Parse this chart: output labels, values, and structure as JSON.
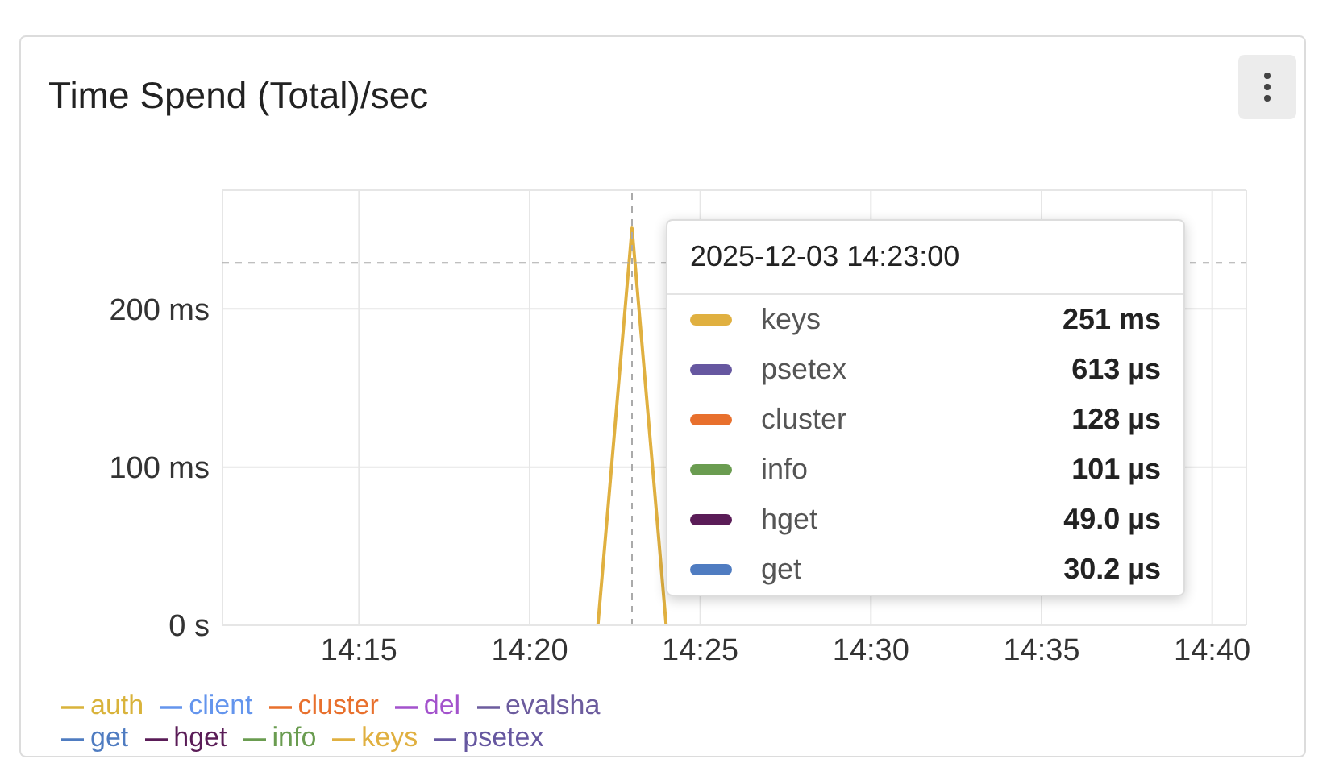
{
  "chart_data": {
    "type": "line",
    "title": "Time Spend (Total)/sec",
    "annotations": [
      "2025-12-03 14:23:00",
      "251 ms",
      "613 µs",
      "128 µs",
      "101 µs",
      "49.0 µs",
      "30.2 µs"
    ],
    "x": [
      "2025-12-03T14:11",
      "2025-12-03T14:12",
      "2025-12-03T14:13",
      "2025-12-03T14:14",
      "2025-12-03T14:15",
      "2025-12-03T14:16",
      "2025-12-03T14:17",
      "2025-12-03T14:18",
      "2025-12-03T14:19",
      "2025-12-03T14:20",
      "2025-12-03T14:21",
      "2025-12-03T14:22",
      "2025-12-03T14:23",
      "2025-12-03T14:24",
      "2025-12-03T14:25",
      "2025-12-03T14:26",
      "2025-12-03T14:27",
      "2025-12-03T14:28",
      "2025-12-03T14:29",
      "2025-12-03T14:30",
      "2025-12-03T14:31",
      "2025-12-03T14:32",
      "2025-12-03T14:33",
      "2025-12-03T14:34",
      "2025-12-03T14:35",
      "2025-12-03T14:36",
      "2025-12-03T14:37",
      "2025-12-03T14:38",
      "2025-12-03T14:39",
      "2025-12-03T14:40",
      "2025-12-03T14:41"
    ],
    "xlim": [
      "2025-12-03T14:11",
      "2025-12-03T14:41"
    ],
    "xticks": [
      {
        "value": "2025-12-03T14:15",
        "label": "14:15"
      },
      {
        "value": "2025-12-03T14:20",
        "label": "14:20"
      },
      {
        "value": "2025-12-03T14:25",
        "label": "14:25"
      },
      {
        "value": "2025-12-03T14:30",
        "label": "14:30"
      },
      {
        "value": "2025-12-03T14:35",
        "label": "14:35"
      },
      {
        "value": "2025-12-03T14:40",
        "label": "14:40"
      }
    ],
    "ylim": [
      0,
      275
    ],
    "yticks": [
      {
        "value": 0,
        "label": "0 s"
      },
      {
        "value": 100,
        "label": "100 ms"
      },
      {
        "value": 200,
        "label": "200 ms"
      }
    ],
    "grid": true,
    "legend": "bottom",
    "marker": "none",
    "line_style": "solid",
    "ref_lines": [
      {
        "axis": "x",
        "value": "2025-12-03T14:23",
        "color": "#aaaaaa",
        "line_style": "dashed"
      },
      {
        "axis": "y",
        "value": 229,
        "color": "#aaaaaa",
        "line_style": "dashed"
      }
    ],
    "series": [
      {
        "name": "keys",
        "color": "#e0b040",
        "values": [
          null,
          null,
          null,
          null,
          null,
          null,
          null,
          null,
          null,
          null,
          null,
          0,
          251,
          0,
          null,
          null,
          null,
          null,
          null,
          null,
          null,
          null,
          null,
          null,
          null,
          null,
          null,
          null,
          null,
          null,
          null
        ]
      },
      {
        "name": "psetex",
        "color": "#6657a0",
        "values": [
          null,
          null,
          null,
          null,
          null,
          null,
          null,
          null,
          null,
          null,
          null,
          null,
          null,
          null,
          null,
          null,
          null,
          null,
          null,
          null,
          null,
          null,
          null,
          null,
          null,
          null,
          null,
          null,
          null,
          null,
          null
        ]
      },
      {
        "name": "cluster",
        "color": "#e8702d",
        "values": [
          null,
          null,
          null,
          null,
          null,
          null,
          null,
          null,
          null,
          null,
          null,
          null,
          null,
          null,
          null,
          null,
          null,
          null,
          null,
          null,
          null,
          null,
          null,
          null,
          null,
          null,
          null,
          null,
          null,
          null,
          null
        ]
      },
      {
        "name": "info",
        "color": "#6a9c50",
        "values": [
          null,
          null,
          null,
          null,
          null,
          null,
          null,
          null,
          null,
          null,
          null,
          null,
          null,
          null,
          null,
          null,
          null,
          null,
          null,
          null,
          null,
          null,
          null,
          null,
          null,
          null,
          null,
          null,
          null,
          null,
          null
        ]
      },
      {
        "name": "hget",
        "color": "#5a1c57",
        "values": [
          null,
          null,
          null,
          null,
          null,
          null,
          null,
          null,
          null,
          null,
          null,
          null,
          null,
          null,
          null,
          null,
          null,
          null,
          null,
          null,
          null,
          null,
          null,
          null,
          null,
          null,
          null,
          null,
          null,
          null,
          null
        ]
      },
      {
        "name": "get",
        "color": "#4f7cc1",
        "values": [
          null,
          null,
          null,
          null,
          null,
          null,
          null,
          null,
          null,
          null,
          null,
          null,
          null,
          null,
          null,
          null,
          null,
          null,
          null,
          null,
          null,
          null,
          null,
          null,
          null,
          null,
          null,
          null,
          null,
          null,
          null
        ]
      },
      {
        "name": "auth",
        "color": "#d9b33b",
        "values": [
          null,
          null,
          null,
          null,
          null,
          null,
          null,
          null,
          null,
          null,
          null,
          null,
          null,
          null,
          null,
          null,
          null,
          null,
          null,
          null,
          null,
          null,
          null,
          null,
          null,
          null,
          null,
          null,
          null,
          null,
          null
        ]
      },
      {
        "name": "client",
        "color": "#6495ed",
        "values": [
          null,
          null,
          null,
          null,
          null,
          null,
          null,
          null,
          null,
          null,
          null,
          null,
          null,
          null,
          null,
          null,
          null,
          null,
          null,
          null,
          null,
          null,
          null,
          null,
          null,
          null,
          null,
          null,
          null,
          null,
          null
        ]
      },
      {
        "name": "del",
        "color": "#a352cc",
        "values": [
          null,
          null,
          null,
          null,
          null,
          null,
          null,
          null,
          null,
          null,
          null,
          null,
          null,
          null,
          null,
          null,
          null,
          null,
          null,
          null,
          null,
          null,
          null,
          null,
          null,
          null,
          null,
          null,
          null,
          null,
          null
        ]
      },
      {
        "name": "evalsha",
        "color": "#6c5c9e",
        "values": [
          null,
          null,
          null,
          null,
          null,
          null,
          null,
          null,
          null,
          null,
          null,
          null,
          null,
          null,
          null,
          null,
          null,
          null,
          null,
          null,
          null,
          null,
          null,
          null,
          null,
          null,
          null,
          null,
          null,
          null,
          null
        ]
      },
      {
        "color": "#37565e",
        "values": [
          0,
          0,
          0,
          0,
          0,
          0,
          0,
          0,
          0,
          0,
          0,
          0,
          0,
          0,
          0,
          0,
          0,
          0,
          0,
          0,
          0,
          0,
          0,
          0,
          0,
          0,
          0,
          0,
          0,
          0,
          0
        ]
      }
    ]
  }
}
